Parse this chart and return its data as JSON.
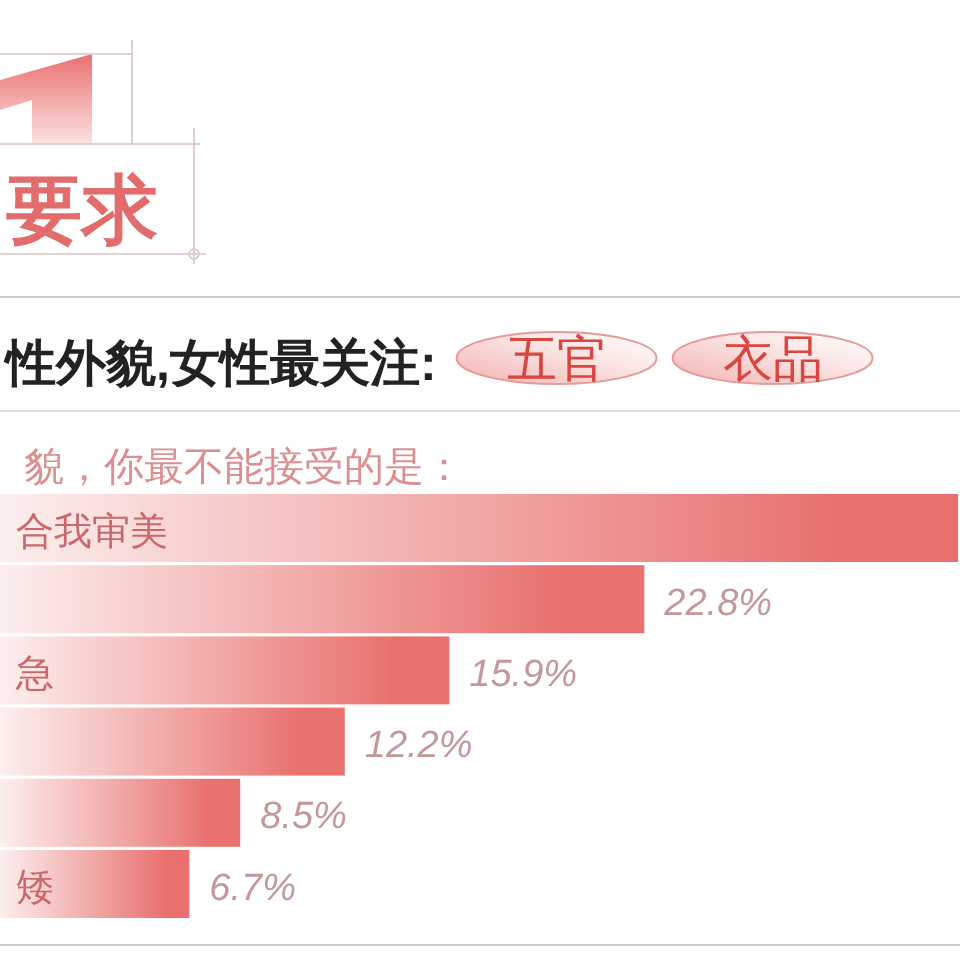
{
  "chart_data": {
    "type": "bar",
    "orientation": "horizontal",
    "title": "要求",
    "subtitle": "性外貌,女性最关注:",
    "annotations": [
      "五官",
      "衣品"
    ],
    "ylabel": "貌，你最不能接受的是：",
    "categories": [
      "合我审美",
      null,
      "急",
      null,
      null,
      "矮"
    ],
    "values": [
      33.9,
      22.8,
      15.9,
      12.2,
      8.5,
      6.7
    ],
    "value_labels": [
      null,
      "22.8%",
      "15.9%",
      "12.2%",
      "8.5%",
      "6.7%"
    ],
    "color": "#e8706e",
    "tick_labels": "y"
  }
}
